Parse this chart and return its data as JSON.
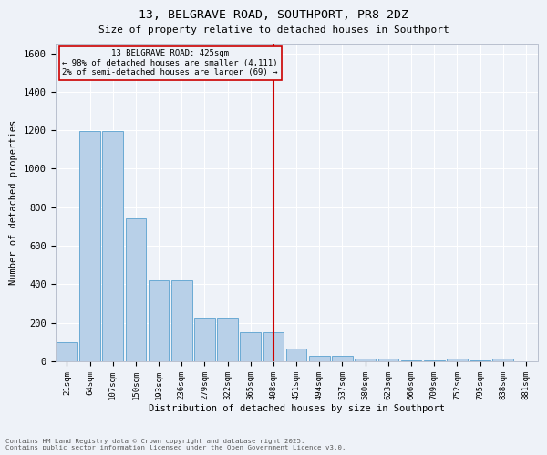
{
  "title_line1": "13, BELGRAVE ROAD, SOUTHPORT, PR8 2DZ",
  "title_line2": "Size of property relative to detached houses in Southport",
  "xlabel": "Distribution of detached houses by size in Southport",
  "ylabel": "Number of detached properties",
  "bin_labels": [
    "21sqm",
    "64sqm",
    "107sqm",
    "150sqm",
    "193sqm",
    "236sqm",
    "279sqm",
    "322sqm",
    "365sqm",
    "408sqm",
    "451sqm",
    "494sqm",
    "537sqm",
    "580sqm",
    "623sqm",
    "666sqm",
    "709sqm",
    "752sqm",
    "795sqm",
    "838sqm",
    "881sqm"
  ],
  "bar_counts": [
    100,
    1195,
    1195,
    740,
    420,
    420,
    225,
    225,
    150,
    150,
    65,
    30,
    30,
    15,
    15,
    5,
    5,
    15,
    5,
    15,
    0
  ],
  "bar_color": "#b8d0e8",
  "bar_edge_color": "#6aaad4",
  "vline_after_bin": 9,
  "vline_color": "#cc0000",
  "annotation_text": "13 BELGRAVE ROAD: 425sqm\n← 98% of detached houses are smaller (4,111)\n2% of semi-detached houses are larger (69) →",
  "annotation_box_color": "#cc0000",
  "ylim_max": 1650,
  "yticks": [
    0,
    200,
    400,
    600,
    800,
    1000,
    1200,
    1400,
    1600
  ],
  "bg_color": "#eef2f8",
  "grid_color": "#ffffff",
  "footer_line1": "Contains HM Land Registry data © Crown copyright and database right 2025.",
  "footer_line2": "Contains public sector information licensed under the Open Government Licence v3.0."
}
